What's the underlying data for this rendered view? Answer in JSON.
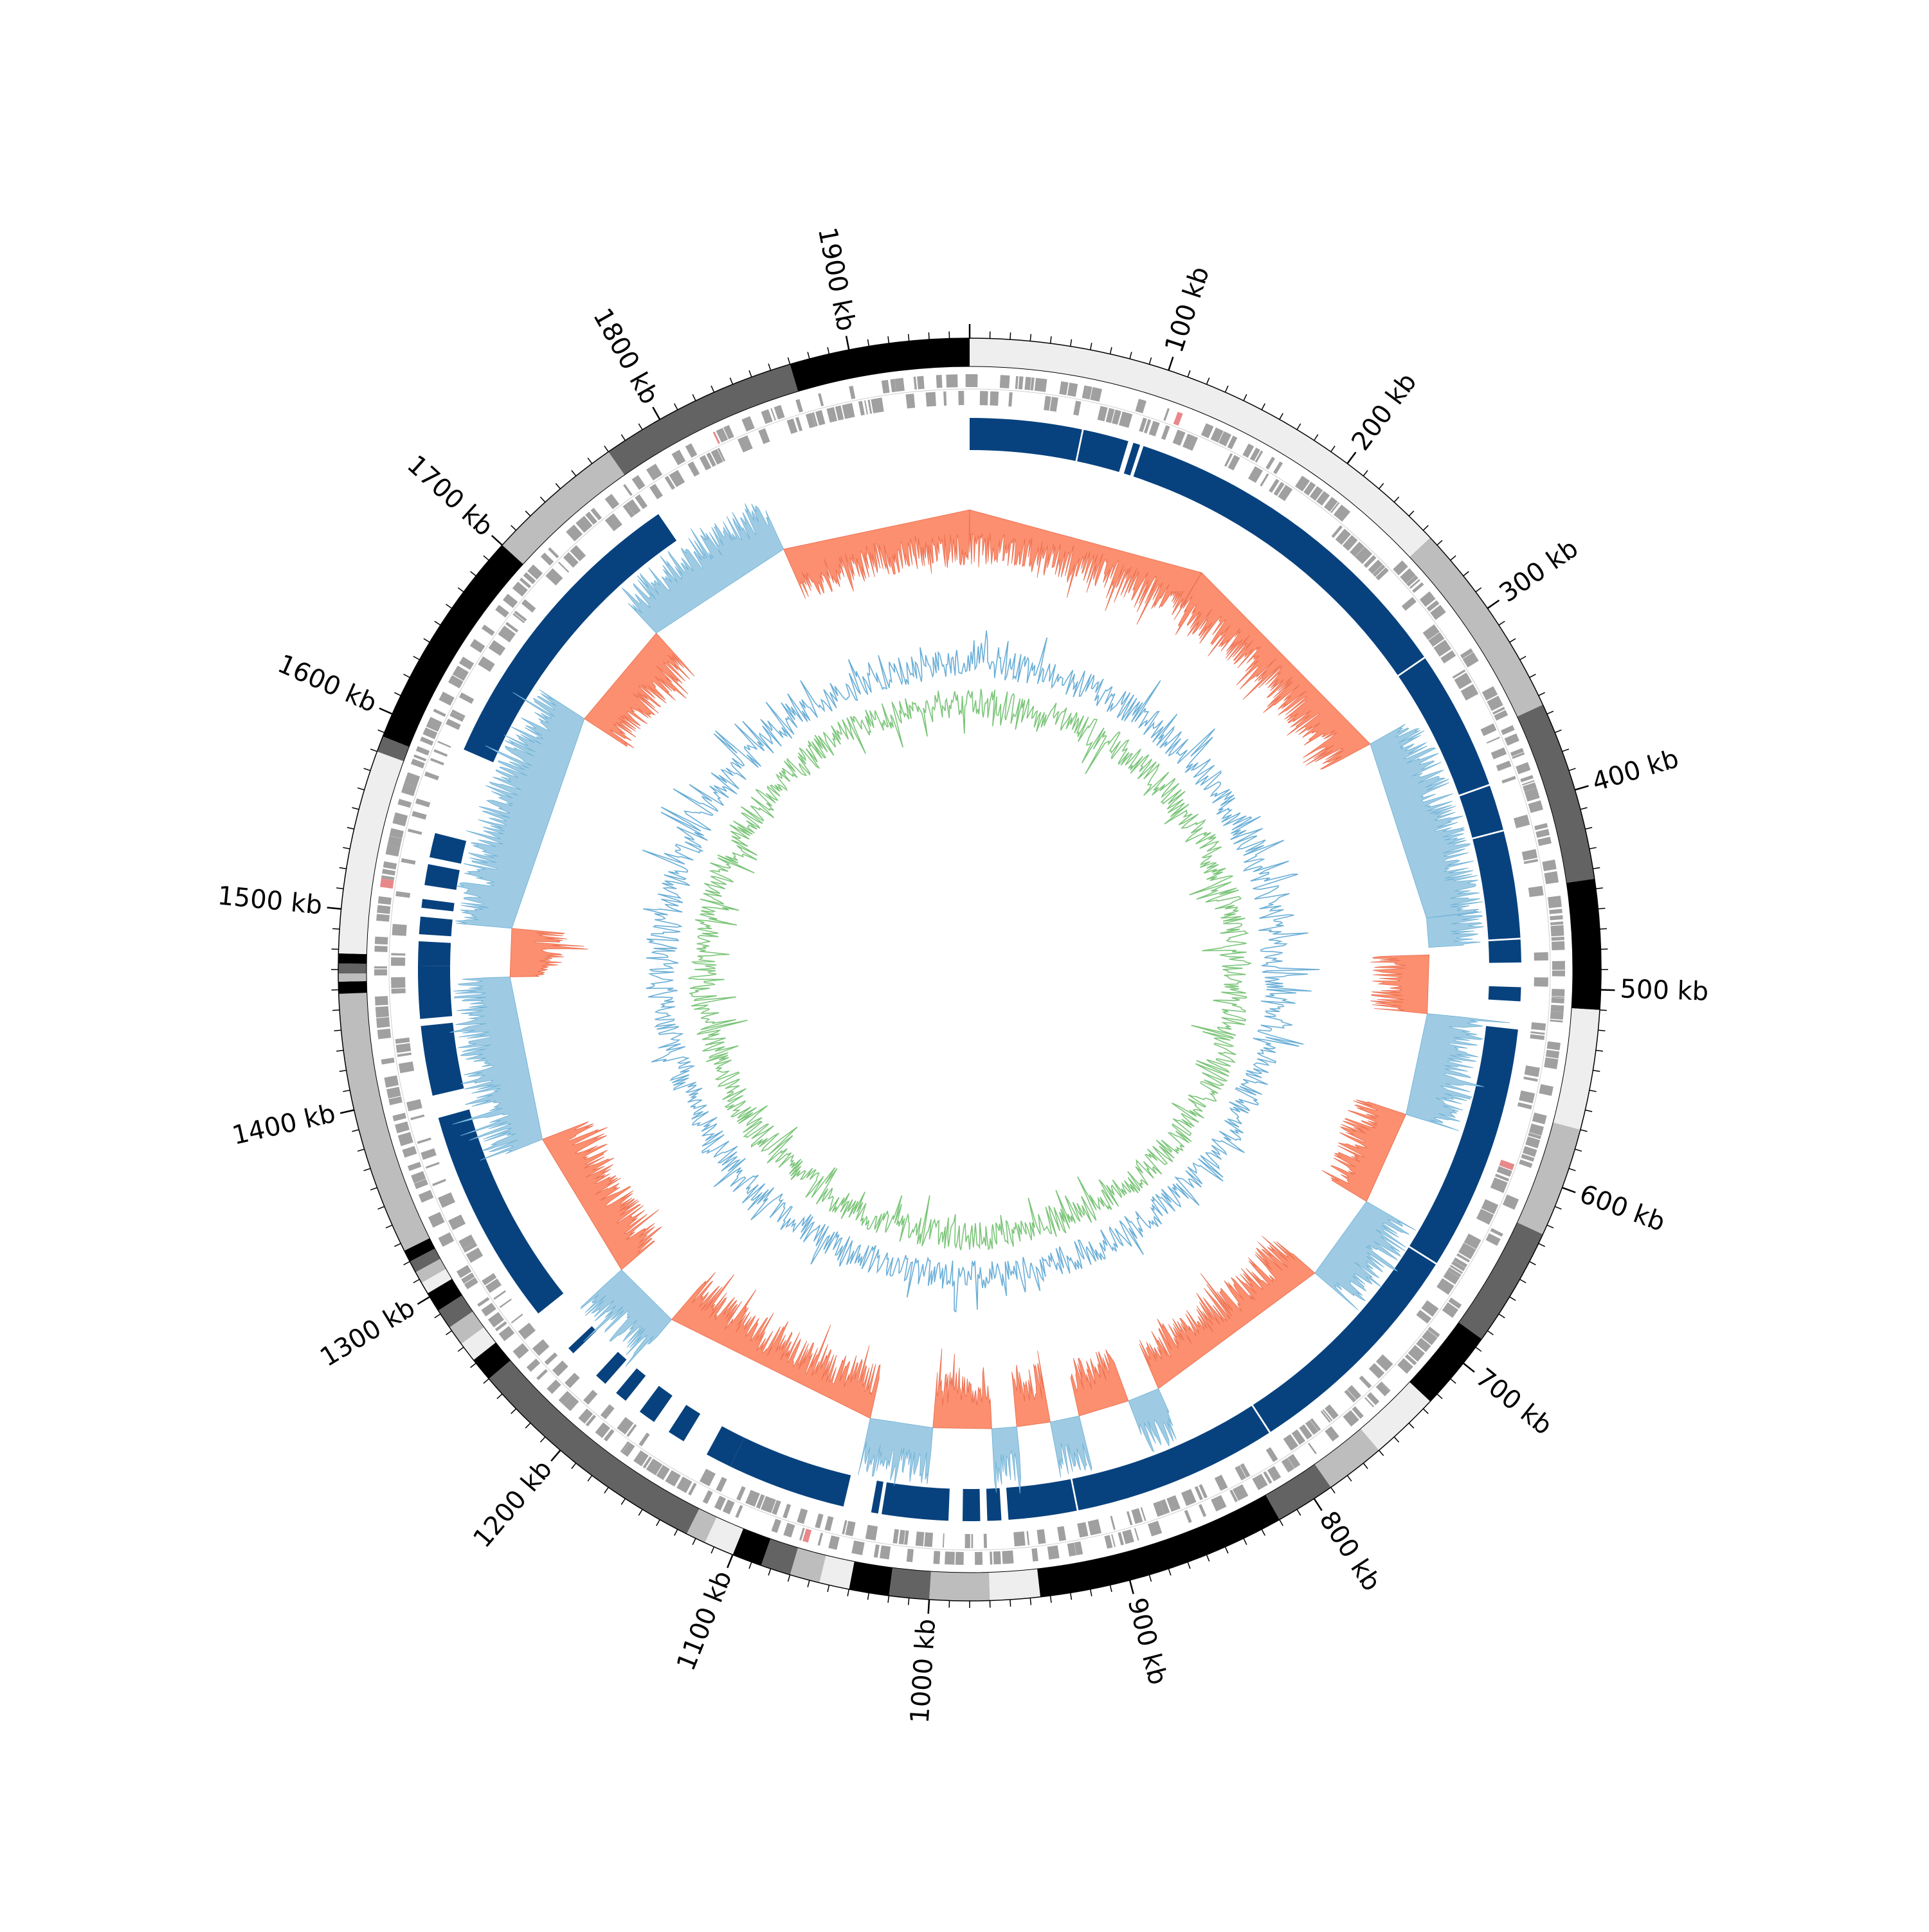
{
  "genome": {
    "total_kb": 1960,
    "scale_labels": [
      "100 kb",
      "200 kb",
      "300 kb",
      "400 kb",
      "500 kb",
      "600 kb",
      "700 kb",
      "800 kb",
      "900 kb",
      "1000 kb",
      "1100 kb",
      "1200 kb",
      "1300 kb",
      "1400 kb",
      "1500 kb",
      "1600 kb",
      "1700 kb",
      "1800 kb",
      "1900 kb"
    ],
    "major_tick_kb": 100,
    "minor_tick_kb": 10
  },
  "colors": {
    "background": "#ffffff",
    "gene_bars": "#a0a0a0",
    "gene_marker": "#e8888a",
    "blocks": "#08427e",
    "gc_skew_positive": "#fb8f6f",
    "gc_skew_negative": "#9ecbe3",
    "gc_content_outer": "#6aaed6",
    "gc_content_inner": "#7cc57a",
    "axis": "#000000"
  },
  "contigs": [
    {
      "start": 0,
      "end": 255,
      "shade": "#eeeeee"
    },
    {
      "start": 255,
      "end": 355,
      "shade": "#bdbdbd"
    },
    {
      "start": 355,
      "end": 445,
      "shade": "#636363"
    },
    {
      "start": 445,
      "end": 510,
      "shade": "#000000"
    },
    {
      "start": 510,
      "end": 570,
      "shade": "#eeeeee"
    },
    {
      "start": 570,
      "end": 625,
      "shade": "#bdbdbd"
    },
    {
      "start": 625,
      "end": 685,
      "shade": "#636363"
    },
    {
      "start": 685,
      "end": 725,
      "shade": "#000000"
    },
    {
      "start": 725,
      "end": 760,
      "shade": "#eeeeee"
    },
    {
      "start": 760,
      "end": 790,
      "shade": "#bdbdbd"
    },
    {
      "start": 790,
      "end": 820,
      "shade": "#636363"
    },
    {
      "start": 820,
      "end": 945,
      "shade": "#000000"
    },
    {
      "start": 945,
      "end": 970,
      "shade": "#eeeeee"
    },
    {
      "start": 970,
      "end": 1000,
      "shade": "#bdbdbd"
    },
    {
      "start": 1000,
      "end": 1020,
      "shade": "#636363"
    },
    {
      "start": 1020,
      "end": 1040,
      "shade": "#000000"
    },
    {
      "start": 1040,
      "end": 1055,
      "shade": "#eeeeee"
    },
    {
      "start": 1055,
      "end": 1070,
      "shade": "#bdbdbd"
    },
    {
      "start": 1070,
      "end": 1085,
      "shade": "#636363"
    },
    {
      "start": 1085,
      "end": 1100,
      "shade": "#000000"
    },
    {
      "start": 1100,
      "end": 1115,
      "shade": "#eeeeee"
    },
    {
      "start": 1115,
      "end": 1125,
      "shade": "#bdbdbd"
    },
    {
      "start": 1125,
      "end": 1250,
      "shade": "#636363"
    },
    {
      "start": 1250,
      "end": 1262,
      "shade": "#000000"
    },
    {
      "start": 1262,
      "end": 1272,
      "shade": "#eeeeee"
    },
    {
      "start": 1272,
      "end": 1282,
      "shade": "#bdbdbd"
    },
    {
      "start": 1282,
      "end": 1292,
      "shade": "#636363"
    },
    {
      "start": 1292,
      "end": 1302,
      "shade": "#000000"
    },
    {
      "start": 1302,
      "end": 1308,
      "shade": "#eeeeee"
    },
    {
      "start": 1308,
      "end": 1314,
      "shade": "#bdbdbd"
    },
    {
      "start": 1314,
      "end": 1320,
      "shade": "#636363"
    },
    {
      "start": 1320,
      "end": 1326,
      "shade": "#000000"
    },
    {
      "start": 1326,
      "end": 1458,
      "shade": "#bdbdbd"
    },
    {
      "start": 1458,
      "end": 1464,
      "shade": "#000000"
    },
    {
      "start": 1464,
      "end": 1468,
      "shade": "#bdbdbd"
    },
    {
      "start": 1468,
      "end": 1473,
      "shade": "#636363"
    },
    {
      "start": 1473,
      "end": 1478,
      "shade": "#000000"
    },
    {
      "start": 1478,
      "end": 1580,
      "shade": "#eeeeee"
    },
    {
      "start": 1580,
      "end": 1588,
      "shade": "#636363"
    },
    {
      "start": 1588,
      "end": 1700,
      "shade": "#000000"
    },
    {
      "start": 1700,
      "end": 1770,
      "shade": "#bdbdbd"
    },
    {
      "start": 1770,
      "end": 1870,
      "shade": "#636363"
    },
    {
      "start": 1870,
      "end": 1960,
      "shade": "#000000"
    }
  ],
  "blocks": [
    {
      "start": 0,
      "end": 64
    },
    {
      "start": 65,
      "end": 91
    },
    {
      "start": 94,
      "end": 98
    },
    {
      "start": 100,
      "end": 302
    },
    {
      "start": 303,
      "end": 383
    },
    {
      "start": 384,
      "end": 410
    },
    {
      "start": 411,
      "end": 472
    },
    {
      "start": 473,
      "end": 486
    },
    {
      "start": 500,
      "end": 508
    },
    {
      "start": 524,
      "end": 665
    },
    {
      "start": 666,
      "end": 800
    },
    {
      "start": 801,
      "end": 918
    },
    {
      "start": 919,
      "end": 958
    },
    {
      "start": 962,
      "end": 970
    },
    {
      "start": 974,
      "end": 984
    },
    {
      "start": 992,
      "end": 1030
    },
    {
      "start": 1032,
      "end": 1036
    },
    {
      "start": 1052,
      "end": 1120
    },
    {
      "start": 1120,
      "end": 1135
    },
    {
      "start": 1150,
      "end": 1160
    },
    {
      "start": 1170,
      "end": 1180
    },
    {
      "start": 1190,
      "end": 1197
    },
    {
      "start": 1205,
      "end": 1212
    },
    {
      "start": 1230,
      "end": 1234
    },
    {
      "start": 1260,
      "end": 1385
    },
    {
      "start": 1398,
      "end": 1438
    },
    {
      "start": 1442,
      "end": 1472
    },
    {
      "start": 1472,
      "end": 1486
    },
    {
      "start": 1490,
      "end": 1500
    },
    {
      "start": 1505,
      "end": 1510
    },
    {
      "start": 1518,
      "end": 1530
    },
    {
      "start": 1534,
      "end": 1548
    },
    {
      "start": 1598,
      "end": 1773
    }
  ],
  "gc_skew": {
    "segments": [
      {
        "start": 0,
        "end": 165,
        "sign": "+"
      },
      {
        "start": 165,
        "end": 330,
        "sign": "+"
      },
      {
        "start": 330,
        "end": 455,
        "sign": "-"
      },
      {
        "start": 455,
        "end": 475,
        "sign": "-"
      },
      {
        "start": 480,
        "end": 520,
        "sign": "+"
      },
      {
        "start": 520,
        "end": 590,
        "sign": "-"
      },
      {
        "start": 590,
        "end": 655,
        "sign": "+"
      },
      {
        "start": 655,
        "end": 715,
        "sign": "-"
      },
      {
        "start": 715,
        "end": 848,
        "sign": "+"
      },
      {
        "start": 848,
        "end": 870,
        "sign": "-"
      },
      {
        "start": 870,
        "end": 905,
        "sign": "+"
      },
      {
        "start": 905,
        "end": 925,
        "sign": "-"
      },
      {
        "start": 925,
        "end": 948,
        "sign": "+"
      },
      {
        "start": 948,
        "end": 965,
        "sign": "-"
      },
      {
        "start": 965,
        "end": 1005,
        "sign": "+"
      },
      {
        "start": 1005,
        "end": 1048,
        "sign": "-"
      },
      {
        "start": 1048,
        "end": 1200,
        "sign": "+"
      },
      {
        "start": 1200,
        "end": 1248,
        "sign": "-"
      },
      {
        "start": 1248,
        "end": 1352,
        "sign": "+"
      },
      {
        "start": 1352,
        "end": 1465,
        "sign": "-"
      },
      {
        "start": 1465,
        "end": 1498,
        "sign": "+"
      },
      {
        "start": 1498,
        "end": 1650,
        "sign": "-"
      },
      {
        "start": 1650,
        "end": 1726,
        "sign": "+"
      },
      {
        "start": 1726,
        "end": 1830,
        "sign": "-"
      },
      {
        "start": 1830,
        "end": 1960,
        "sign": "+"
      }
    ]
  }
}
